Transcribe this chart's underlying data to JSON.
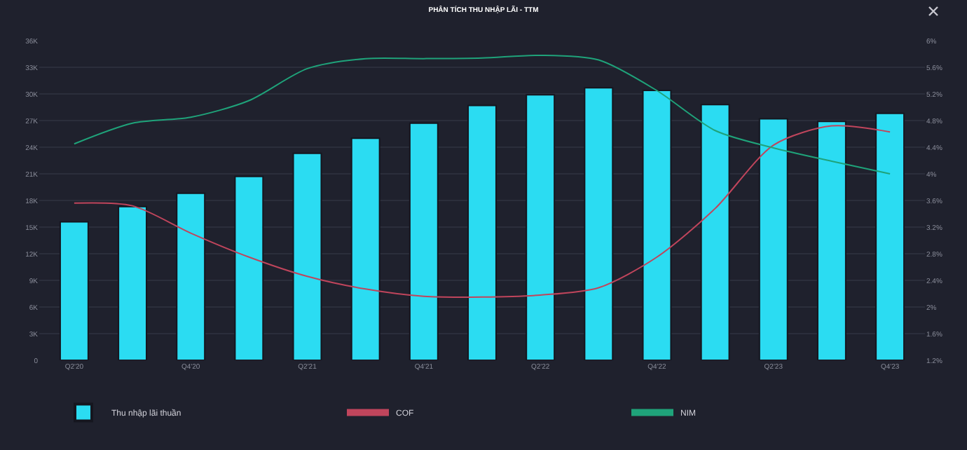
{
  "chart_data": {
    "type": "bar",
    "title": "PHÂN TÍCH THU NHẬP LÃI - TTM",
    "categories": [
      "Q2'20",
      null,
      "Q4'20",
      null,
      "Q2'21",
      null,
      "Q4'21",
      null,
      "Q2'22",
      null,
      "Q4'22",
      null,
      "Q2'23",
      null,
      "Q4'23"
    ],
    "series": [
      {
        "name": "Thu nhập lãi thuần",
        "color": "#2bdcf2",
        "values": [
          15600,
          17300,
          18800,
          20700,
          23300,
          25000,
          26700,
          28700,
          29900,
          30700,
          30400,
          28800,
          27200,
          26900,
          27800
        ]
      },
      {
        "name": "COF",
        "type": "line",
        "axis": "y2",
        "color": "#c0455c",
        "values": [
          3.56,
          3.52,
          3.11,
          2.75,
          2.46,
          2.27,
          2.16,
          2.15,
          2.18,
          2.29,
          2.75,
          3.48,
          4.43,
          4.72,
          4.63
        ]
      },
      {
        "name": "NIM",
        "type": "line",
        "axis": "y2",
        "color": "#1fa37a",
        "values": [
          4.45,
          4.76,
          4.85,
          5.1,
          5.58,
          5.73,
          5.73,
          5.74,
          5.78,
          5.71,
          5.25,
          4.65,
          4.39,
          4.19,
          4.0
        ]
      }
    ],
    "ylim": [
      0,
      36000
    ],
    "yticks": [
      {
        "value": 0,
        "label": "0"
      },
      {
        "value": 3000,
        "label": "3K"
      },
      {
        "value": 6000,
        "label": "6K"
      },
      {
        "value": 9000,
        "label": "9K"
      },
      {
        "value": 12000,
        "label": "12K"
      },
      {
        "value": 15000,
        "label": "15K"
      },
      {
        "value": 18000,
        "label": "18K"
      },
      {
        "value": 21000,
        "label": "21K"
      },
      {
        "value": 24000,
        "label": "24K"
      },
      {
        "value": 27000,
        "label": "27K"
      },
      {
        "value": 30000,
        "label": "30K"
      },
      {
        "value": 33000,
        "label": "33K"
      },
      {
        "value": 36000,
        "label": "36K"
      }
    ],
    "y2lim": [
      1.2,
      6
    ],
    "y2ticks": [
      {
        "value": 1.2,
        "label": "1.2%"
      },
      {
        "value": 1.6,
        "label": "1.6%"
      },
      {
        "value": 2,
        "label": "2%"
      },
      {
        "value": 2.4,
        "label": "2.4%"
      },
      {
        "value": 2.8,
        "label": "2.8%"
      },
      {
        "value": 3.2,
        "label": "3.2%"
      },
      {
        "value": 3.6,
        "label": "3.6%"
      },
      {
        "value": 4,
        "label": "4%"
      },
      {
        "value": 4.4,
        "label": "4.4%"
      },
      {
        "value": 4.8,
        "label": "4.8%"
      },
      {
        "value": 5.2,
        "label": "5.2%"
      },
      {
        "value": 5.6,
        "label": "5.6%"
      },
      {
        "value": 6,
        "label": "6%"
      }
    ],
    "grid": "y",
    "legend": "bottom"
  }
}
